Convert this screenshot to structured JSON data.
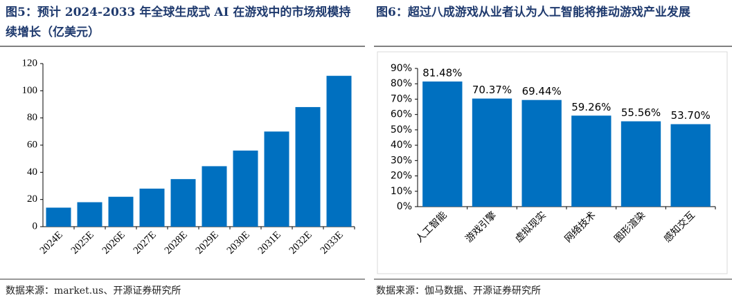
{
  "chart_data": [
    {
      "type": "bar",
      "title": "图5：预计 2024-2033 年全球生成式 AI 在游戏中的市场规模持续增长（亿美元）",
      "categories": [
        "2024E",
        "2025E",
        "2026E",
        "2027E",
        "2028E",
        "2029E",
        "2030E",
        "2031E",
        "2032E",
        "2033E"
      ],
      "values": [
        14,
        18,
        22,
        28,
        35,
        44.5,
        56,
        70,
        88,
        111
      ],
      "color": "#0070c0",
      "ylim": [
        0,
        120
      ],
      "yticks": [
        0,
        20,
        40,
        60,
        80,
        100,
        120
      ],
      "grid": false,
      "source": "数据来源：market.us、开源证券研究所"
    },
    {
      "type": "bar",
      "title": "图6：超过八成游戏从业者认为人工智能将推动游戏产业发展",
      "categories": [
        "人工智能",
        "游戏引擎",
        "虚拟现实",
        "网络技术",
        "图形渲染",
        "感知交互"
      ],
      "values": [
        81.48,
        70.37,
        69.44,
        59.26,
        55.56,
        53.7
      ],
      "value_labels": [
        "81.48%",
        "70.37%",
        "69.44%",
        "59.26%",
        "55.56%",
        "53.70%"
      ],
      "color": "#0070c0",
      "ylim": [
        0,
        90
      ],
      "yticks": [
        {
          "value": 0,
          "label": "0%"
        },
        {
          "value": 10,
          "label": "10%"
        },
        {
          "value": 20,
          "label": "20%"
        },
        {
          "value": 30,
          "label": "30%"
        },
        {
          "value": 40,
          "label": "40%"
        },
        {
          "value": 50,
          "label": "50%"
        },
        {
          "value": 60,
          "label": "60%"
        },
        {
          "value": 70,
          "label": "70%"
        },
        {
          "value": 80,
          "label": "80%"
        },
        {
          "value": 90,
          "label": "90%"
        }
      ],
      "grid": false,
      "source": "数据来源：伽马数据、开源证券研究所"
    }
  ]
}
